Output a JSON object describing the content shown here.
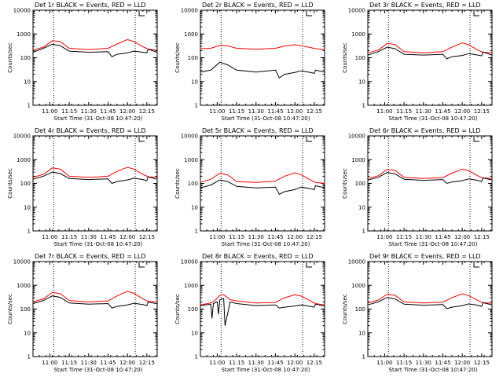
{
  "chart_data": [
    {
      "type": "line",
      "title": "Det 1r BLACK = Events, RED = LLD",
      "xlabel": "Start Time (31-Oct-08 10:47:20)",
      "ylabel": "Counts/sec",
      "yscale": "log",
      "ylim": [
        1,
        10000
      ],
      "xlim": [
        "10:47",
        "12:23"
      ],
      "x_ticks": [
        "11:00",
        "11:15",
        "11:30",
        "11:45",
        "12:00",
        "12:15"
      ],
      "y_ticks": [
        "1",
        "10",
        "100",
        "1000",
        "10000"
      ],
      "vlines": [
        "11:03",
        "12:06"
      ],
      "grid": false,
      "series": [
        {
          "color": "#ff0000",
          "x": [
            "10:47",
            "10:55",
            "11:02",
            "11:08",
            "11:15",
            "11:30",
            "11:45",
            "11:52",
            "12:00",
            "12:05",
            "12:12",
            "12:16",
            "12:23"
          ],
          "values": [
            210,
            280,
            520,
            480,
            250,
            220,
            250,
            380,
            580,
            480,
            290,
            230,
            210
          ]
        },
        {
          "color": "#000000",
          "x": [
            "10:47",
            "10:55",
            "11:02",
            "11:08",
            "11:15",
            "11:30",
            "11:45",
            "11:48",
            "11:52",
            "12:00",
            "12:05",
            "12:12",
            "12:15",
            "12:16",
            "12:23"
          ],
          "values": [
            170,
            250,
            370,
            320,
            190,
            170,
            180,
            110,
            140,
            160,
            190,
            170,
            160,
            230,
            170
          ]
        }
      ]
    },
    {
      "type": "line",
      "title": "Det 2r BLACK = Events, RED = LLD",
      "xlabel": "Start Time (31-Oct-08 10:47:20)",
      "ylabel": "Counts/sec",
      "yscale": "log",
      "ylim": [
        1,
        10000
      ],
      "xlim": [
        "10:47",
        "12:23"
      ],
      "x_ticks": [
        "11:00",
        "11:15",
        "11:30",
        "11:45",
        "12:00",
        "12:15"
      ],
      "y_ticks": [
        "1",
        "10",
        "100",
        "1000",
        "10000"
      ],
      "vlines": [
        "11:03",
        "12:06"
      ],
      "grid": false,
      "series": [
        {
          "color": "#ff0000",
          "x": [
            "10:47",
            "10:55",
            "11:02",
            "11:08",
            "11:15",
            "11:30",
            "11:45",
            "11:52",
            "12:00",
            "12:05",
            "12:12",
            "12:16",
            "12:23"
          ],
          "values": [
            240,
            250,
            330,
            320,
            250,
            230,
            250,
            310,
            350,
            320,
            270,
            240,
            220
          ]
        },
        {
          "color": "#000000",
          "x": [
            "10:47",
            "10:55",
            "11:02",
            "11:08",
            "11:15",
            "11:30",
            "11:45",
            "11:48",
            "11:52",
            "12:00",
            "12:05",
            "12:12",
            "12:15",
            "12:16",
            "12:23"
          ],
          "values": [
            25,
            30,
            65,
            50,
            30,
            25,
            30,
            14,
            20,
            24,
            28,
            24,
            22,
            30,
            25
          ]
        }
      ]
    },
    {
      "type": "line",
      "title": "Det 3r BLACK = Events, RED = LLD",
      "xlabel": "Start Time (31-Oct-08 10:47:20)",
      "ylabel": "Counts/sec",
      "yscale": "log",
      "ylim": [
        1,
        10000
      ],
      "xlim": [
        "10:47",
        "12:23"
      ],
      "x_ticks": [
        "11:00",
        "11:15",
        "11:30",
        "11:45",
        "12:00",
        "12:15"
      ],
      "y_ticks": [
        "1",
        "10",
        "100",
        "1000",
        "10000"
      ],
      "vlines": [
        "11:03",
        "12:06"
      ],
      "grid": false,
      "series": [
        {
          "color": "#ff0000",
          "x": [
            "10:47",
            "10:55",
            "11:02",
            "11:08",
            "11:15",
            "11:30",
            "11:45",
            "11:52",
            "12:00",
            "12:05",
            "12:12",
            "12:16",
            "12:23"
          ],
          "values": [
            160,
            210,
            400,
            360,
            180,
            160,
            180,
            280,
            420,
            350,
            210,
            170,
            160
          ]
        },
        {
          "color": "#000000",
          "x": [
            "10:47",
            "10:55",
            "11:02",
            "11:08",
            "11:15",
            "11:30",
            "11:45",
            "11:48",
            "11:52",
            "12:00",
            "12:05",
            "12:12",
            "12:15",
            "12:16",
            "12:23"
          ],
          "values": [
            130,
            180,
            280,
            240,
            140,
            130,
            140,
            90,
            110,
            125,
            150,
            130,
            120,
            175,
            130
          ]
        }
      ]
    },
    {
      "type": "line",
      "title": "Det 4r BLACK = Events, RED = LLD",
      "xlabel": "Start Time (31-Oct-08 10:47:20)",
      "ylabel": "Counts/sec",
      "yscale": "log",
      "ylim": [
        1,
        10000
      ],
      "xlim": [
        "10:47",
        "12:23"
      ],
      "x_ticks": [
        "11:00",
        "11:15",
        "11:30",
        "11:45",
        "12:00",
        "12:15"
      ],
      "y_ticks": [
        "1",
        "10",
        "100",
        "1000",
        "10000"
      ],
      "vlines": [
        "11:03",
        "12:06"
      ],
      "grid": false,
      "series": [
        {
          "color": "#ff0000",
          "x": [
            "10:47",
            "10:55",
            "11:02",
            "11:08",
            "11:15",
            "11:30",
            "11:45",
            "11:52",
            "12:00",
            "12:05",
            "12:12",
            "12:16",
            "12:23"
          ],
          "values": [
            180,
            240,
            450,
            400,
            200,
            180,
            200,
            320,
            480,
            400,
            240,
            190,
            180
          ]
        },
        {
          "color": "#000000",
          "x": [
            "10:47",
            "10:55",
            "11:02",
            "11:08",
            "11:15",
            "11:30",
            "11:45",
            "11:48",
            "11:52",
            "12:00",
            "12:05",
            "12:12",
            "12:15",
            "12:16",
            "12:23"
          ],
          "values": [
            150,
            200,
            300,
            260,
            160,
            145,
            155,
            100,
            120,
            140,
            165,
            145,
            130,
            190,
            150
          ]
        }
      ]
    },
    {
      "type": "line",
      "title": "Det 5r BLACK = Events, RED = LLD",
      "xlabel": "Start Time (31-Oct-08 10:47:20)",
      "ylabel": "Counts/sec",
      "yscale": "log",
      "ylim": [
        1,
        10000
      ],
      "xlim": [
        "10:47",
        "12:23"
      ],
      "x_ticks": [
        "11:00",
        "11:15",
        "11:30",
        "11:45",
        "12:00",
        "12:15"
      ],
      "y_ticks": [
        "1",
        "10",
        "100",
        "1000",
        "10000"
      ],
      "vlines": [
        "11:03",
        "12:06"
      ],
      "grid": false,
      "series": [
        {
          "color": "#ff0000",
          "x": [
            "10:47",
            "10:55",
            "11:02",
            "11:08",
            "11:15",
            "11:30",
            "11:45",
            "11:52",
            "12:00",
            "12:05",
            "12:12",
            "12:16",
            "12:23"
          ],
          "values": [
            110,
            150,
            270,
            230,
            120,
            110,
            125,
            200,
            280,
            230,
            140,
            110,
            100
          ]
        },
        {
          "color": "#000000",
          "x": [
            "10:47",
            "10:55",
            "11:02",
            "11:08",
            "11:15",
            "11:30",
            "11:45",
            "11:48",
            "11:52",
            "12:00",
            "12:05",
            "12:12",
            "12:15",
            "12:16",
            "12:23"
          ],
          "values": [
            65,
            85,
            140,
            120,
            75,
            65,
            70,
            35,
            45,
            55,
            70,
            60,
            55,
            80,
            65
          ]
        }
      ]
    },
    {
      "type": "line",
      "title": "Det 6r BLACK = Events, RED = LLD",
      "xlabel": "Start Time (31-Oct-08 10:47:20)",
      "ylabel": "Counts/sec",
      "yscale": "log",
      "ylim": [
        1,
        10000
      ],
      "xlim": [
        "10:47",
        "12:23"
      ],
      "x_ticks": [
        "11:00",
        "11:15",
        "11:30",
        "11:45",
        "12:00",
        "12:15"
      ],
      "y_ticks": [
        "1",
        "10",
        "100",
        "1000",
        "10000"
      ],
      "vlines": [
        "11:03",
        "12:06"
      ],
      "grid": false,
      "series": [
        {
          "color": "#ff0000",
          "x": [
            "10:47",
            "10:55",
            "11:02",
            "11:08",
            "11:15",
            "11:30",
            "11:45",
            "11:52",
            "12:00",
            "12:05",
            "12:12",
            "12:16",
            "12:23"
          ],
          "values": [
            160,
            210,
            390,
            350,
            180,
            160,
            175,
            270,
            400,
            340,
            210,
            170,
            160
          ]
        },
        {
          "color": "#000000",
          "x": [
            "10:47",
            "10:55",
            "11:02",
            "11:08",
            "11:15",
            "11:30",
            "11:45",
            "11:48",
            "11:52",
            "12:00",
            "12:05",
            "12:12",
            "12:15",
            "12:16",
            "12:23"
          ],
          "values": [
            140,
            180,
            290,
            250,
            150,
            135,
            145,
            100,
            115,
            130,
            155,
            135,
            120,
            170,
            140
          ]
        }
      ]
    },
    {
      "type": "line",
      "title": "Det 7r BLACK = Events, RED = LLD",
      "xlabel": "Start Time (31-Oct-08 10:47:20)",
      "ylabel": "Counts/sec",
      "yscale": "log",
      "ylim": [
        1,
        10000
      ],
      "xlim": [
        "10:47",
        "12:23"
      ],
      "x_ticks": [
        "11:00",
        "11:15",
        "11:30",
        "11:45",
        "12:00",
        "12:15"
      ],
      "y_ticks": [
        "1",
        "10",
        "100",
        "1000",
        "10000"
      ],
      "vlines": [
        "11:03",
        "12:06"
      ],
      "grid": false,
      "series": [
        {
          "color": "#ff0000",
          "x": [
            "10:47",
            "10:55",
            "11:02",
            "11:08",
            "11:15",
            "11:30",
            "11:45",
            "11:52",
            "12:00",
            "12:05",
            "12:12",
            "12:16",
            "12:23"
          ],
          "values": [
            200,
            270,
            500,
            450,
            230,
            200,
            220,
            360,
            560,
            460,
            270,
            210,
            200
          ]
        },
        {
          "color": "#000000",
          "x": [
            "10:47",
            "10:55",
            "11:02",
            "11:08",
            "11:15",
            "11:30",
            "11:45",
            "11:48",
            "11:52",
            "12:00",
            "12:05",
            "12:12",
            "12:15",
            "12:16",
            "12:23"
          ],
          "values": [
            170,
            230,
            360,
            310,
            180,
            160,
            170,
            110,
            130,
            150,
            175,
            155,
            140,
            200,
            165
          ]
        }
      ]
    },
    {
      "type": "line",
      "title": "Det 8r BLACK = Events, RED = LLD",
      "xlabel": "Start Time (31-Oct-08 10:47:20)",
      "ylabel": "Counts/sec",
      "yscale": "log",
      "ylim": [
        1,
        10000
      ],
      "xlim": [
        "10:47",
        "12:23"
      ],
      "x_ticks": [
        "11:00",
        "11:15",
        "11:30",
        "11:45",
        "12:00",
        "12:15"
      ],
      "y_ticks": [
        "1",
        "10",
        "100",
        "1000",
        "10000"
      ],
      "vlines": [
        "11:03",
        "12:06"
      ],
      "grid": false,
      "series": [
        {
          "color": "#ff0000",
          "x": [
            "10:47",
            "10:55",
            "10:58",
            "11:02",
            "11:05",
            "11:08",
            "11:10",
            "11:15",
            "11:30",
            "11:45",
            "11:52",
            "12:00",
            "12:05",
            "12:12",
            "12:16",
            "12:23"
          ],
          "values": [
            150,
            180,
            220,
            380,
            400,
            300,
            250,
            220,
            180,
            190,
            300,
            400,
            350,
            220,
            170,
            150
          ]
        },
        {
          "color": "#000000",
          "x": [
            "10:47",
            "10:55",
            "10:56",
            "10:57",
            "11:00",
            "11:01",
            "11:02",
            "11:05",
            "11:06",
            "11:10",
            "11:15",
            "11:30",
            "11:45",
            "11:48",
            "11:52",
            "12:00",
            "12:05",
            "12:12",
            "12:15",
            "12:16",
            "12:23"
          ],
          "values": [
            140,
            160,
            40,
            170,
            200,
            60,
            250,
            280,
            20,
            200,
            170,
            140,
            150,
            110,
            120,
            135,
            150,
            130,
            120,
            160,
            135
          ]
        }
      ]
    },
    {
      "type": "line",
      "title": "Det 9r BLACK = Events, RED = LLD",
      "xlabel": "Start Time (31-Oct-08 10:47:20)",
      "ylabel": "Counts/sec",
      "yscale": "log",
      "ylim": [
        1,
        10000
      ],
      "xlim": [
        "10:47",
        "12:23"
      ],
      "x_ticks": [
        "11:00",
        "11:15",
        "11:30",
        "11:45",
        "12:00",
        "12:15"
      ],
      "y_ticks": [
        "1",
        "10",
        "100",
        "1000",
        "10000"
      ],
      "vlines": [
        "11:03",
        "12:06"
      ],
      "grid": false,
      "series": [
        {
          "color": "#ff0000",
          "x": [
            "10:47",
            "10:55",
            "11:02",
            "11:08",
            "11:15",
            "11:30",
            "11:45",
            "11:52",
            "12:00",
            "12:05",
            "12:12",
            "12:16",
            "12:23"
          ],
          "values": [
            180,
            240,
            420,
            380,
            200,
            180,
            195,
            300,
            440,
            370,
            230,
            185,
            175
          ]
        },
        {
          "color": "#000000",
          "x": [
            "10:47",
            "10:55",
            "11:02",
            "11:08",
            "11:15",
            "11:30",
            "11:45",
            "11:48",
            "11:52",
            "12:00",
            "12:05",
            "12:12",
            "12:15",
            "12:16",
            "12:23"
          ],
          "values": [
            150,
            200,
            310,
            270,
            160,
            145,
            155,
            105,
            120,
            140,
            165,
            145,
            130,
            185,
            150
          ]
        }
      ]
    }
  ]
}
